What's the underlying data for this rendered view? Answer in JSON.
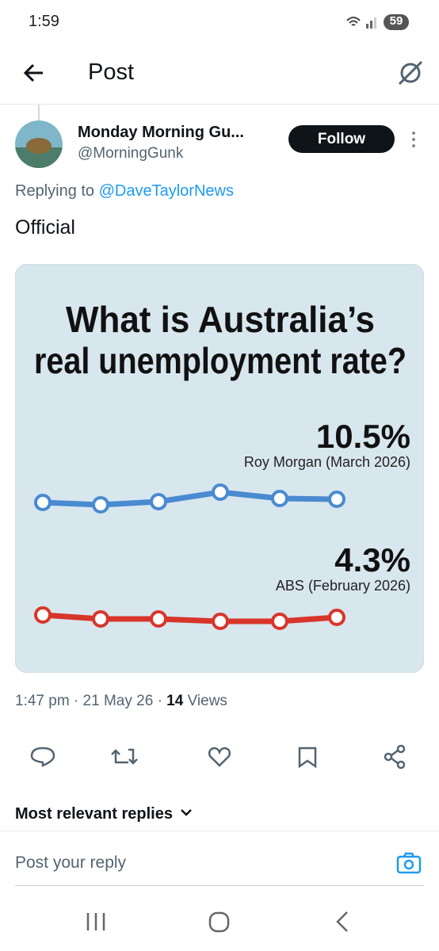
{
  "status": {
    "time": "1:59",
    "battery": "59"
  },
  "header": {
    "title": "Post"
  },
  "tweet": {
    "name": "Monday Morning Gu...",
    "handle": "@MorningGunk",
    "follow": "Follow",
    "replying_prefix": "Replying to",
    "replying_to": "@DaveTaylorNews",
    "text": "Official"
  },
  "image": {
    "title_lines": [
      "What is Australia’s",
      "real unemployment rate?"
    ],
    "series": [
      {
        "value_label": "10.5%",
        "source": "Roy Morgan (March 2026)"
      },
      {
        "value_label": "4.3%",
        "source": "ABS (February 2026)"
      }
    ]
  },
  "meta": {
    "time": "1:47 pm",
    "separator": "·",
    "date": "21 May 26",
    "views_count": "14",
    "views_label": "Views"
  },
  "replies": {
    "sort": "Most relevant replies",
    "compose": "Post your reply"
  }
}
